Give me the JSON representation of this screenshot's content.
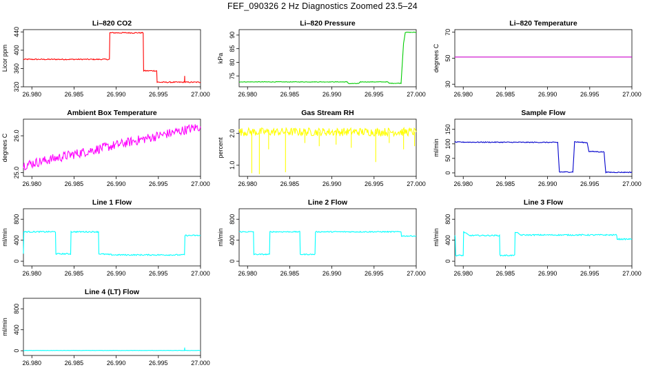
{
  "figure_title": "FEF_090326  2 Hz Diagnostics Zoomed 23.5–24",
  "chart_data": [
    {
      "type": "line",
      "title": "Li–820 CO2",
      "ylabel": "Licor ppm",
      "color": "#ff0000",
      "xlim": [
        26.979,
        27.0
      ],
      "ylim": [
        320,
        445
      ],
      "xticks": [
        26.98,
        26.985,
        26.99,
        26.995,
        27.0
      ],
      "xtick_labels": [
        "26.980",
        "26.985",
        "26.990",
        "26.995",
        "27.000"
      ],
      "yticks": [
        320,
        360,
        400,
        440
      ],
      "ytick_labels": [
        "320",
        "360",
        "400",
        "440"
      ],
      "noise": 1.2,
      "x": [
        26.979,
        26.9892,
        26.98925,
        26.9932,
        26.99325,
        26.9948,
        26.99485,
        26.9981,
        26.99812,
        26.99814,
        26.99816,
        27.0
      ],
      "y": [
        380,
        380,
        438,
        438,
        355,
        355,
        330,
        330,
        345,
        330,
        330,
        330
      ]
    },
    {
      "type": "line",
      "title": "Li–820 Pressure",
      "ylabel": "kPa",
      "color": "#00cc00",
      "xlim": [
        26.979,
        27.0
      ],
      "ylim": [
        71,
        92
      ],
      "xticks": [
        26.98,
        26.985,
        26.99,
        26.995,
        27.0
      ],
      "xtick_labels": [
        "26.980",
        "26.985",
        "26.990",
        "26.995",
        "27.000"
      ],
      "yticks": [
        75,
        80,
        85,
        90
      ],
      "ytick_labels": [
        "75",
        "80",
        "85",
        "90"
      ],
      "noise": 0.1,
      "x": [
        26.979,
        26.9918,
        26.992,
        26.9932,
        26.9934,
        26.9966,
        26.9968,
        26.9982,
        26.9985,
        26.9987,
        27.0
      ],
      "y": [
        72.8,
        72.8,
        72.2,
        72.2,
        72.8,
        72.8,
        72.3,
        72.3,
        87,
        91,
        91
      ]
    },
    {
      "type": "line",
      "title": "Li–820 Temperature",
      "ylabel": "degrees C",
      "color": "#cc00cc",
      "xlim": [
        26.979,
        27.0
      ],
      "ylim": [
        28,
        72
      ],
      "xticks": [
        26.98,
        26.985,
        26.99,
        26.995,
        27.0
      ],
      "xtick_labels": [
        "26.980",
        "26.985",
        "26.990",
        "26.995",
        "27.000"
      ],
      "yticks": [
        30,
        50,
        70
      ],
      "ytick_labels": [
        "30",
        "50",
        "70"
      ],
      "noise": 0,
      "x": [
        26.979,
        27.0
      ],
      "y": [
        50.9,
        50.9
      ]
    },
    {
      "type": "line",
      "title": "Ambient Box Temperature",
      "ylabel": "degrees C",
      "color": "#ff00ff",
      "xlim": [
        26.979,
        27.0
      ],
      "ylim": [
        24.9,
        26.45
      ],
      "xticks": [
        26.98,
        26.985,
        26.99,
        26.995,
        27.0
      ],
      "xtick_labels": [
        "26.980",
        "26.985",
        "26.990",
        "26.995",
        "27.000"
      ],
      "yticks": [
        25.0,
        26.0
      ],
      "ytick_labels": [
        "25.0",
        "26.0"
      ],
      "noise": 0.13,
      "x": [
        26.979,
        26.982,
        26.986,
        26.99,
        26.994,
        26.998,
        27.0
      ],
      "y": [
        25.2,
        25.35,
        25.55,
        25.75,
        25.95,
        26.15,
        26.25
      ]
    },
    {
      "type": "line",
      "title": "Gas Stream RH",
      "ylabel": "percent",
      "color": "#ffff00",
      "xlim": [
        26.979,
        27.0
      ],
      "ylim": [
        0.65,
        2.45
      ],
      "xticks": [
        26.98,
        26.985,
        26.99,
        26.995,
        27.0
      ],
      "xtick_labels": [
        "26.980",
        "26.985",
        "26.990",
        "26.995",
        "27.000"
      ],
      "yticks": [
        1.0,
        2.0
      ],
      "ytick_labels": [
        "1.0",
        "2.0"
      ],
      "noise": 0.13,
      "x": [
        26.979,
        27.0
      ],
      "y": [
        2.05,
        2.05
      ],
      "spikes": [
        {
          "x": 26.9805,
          "y": 0.75
        },
        {
          "x": 26.9814,
          "y": 0.72
        },
        {
          "x": 26.9845,
          "y": 0.78
        },
        {
          "x": 26.9825,
          "y": 1.5
        },
        {
          "x": 26.9868,
          "y": 1.7
        },
        {
          "x": 26.9885,
          "y": 1.6
        },
        {
          "x": 26.9905,
          "y": 1.65
        },
        {
          "x": 26.9923,
          "y": 1.55
        },
        {
          "x": 26.9952,
          "y": 1.1
        },
        {
          "x": 26.9968,
          "y": 1.7
        },
        {
          "x": 26.9985,
          "y": 1.5
        },
        {
          "x": 26.9998,
          "y": 1.6
        }
      ]
    },
    {
      "type": "line",
      "title": "Sample Flow",
      "ylabel": "ml/min",
      "color": "#0000cc",
      "xlim": [
        26.979,
        27.0
      ],
      "ylim": [
        -12,
        185
      ],
      "xticks": [
        26.98,
        26.985,
        26.99,
        26.995,
        27.0
      ],
      "xtick_labels": [
        "26.980",
        "26.985",
        "26.990",
        "26.995",
        "27.000"
      ],
      "yticks": [
        0,
        50,
        100,
        150
      ],
      "ytick_labels": [
        "0",
        "50",
        "100",
        "150"
      ],
      "noise": 1.5,
      "x": [
        26.979,
        26.9912,
        26.9914,
        26.993,
        26.9932,
        26.9947,
        26.9949,
        26.9967,
        26.9969,
        27.0
      ],
      "y": [
        106,
        105,
        3,
        3,
        107,
        104,
        74,
        72,
        2,
        2
      ]
    },
    {
      "type": "line",
      "title": "Line 1 Flow",
      "ylabel": "ml/min",
      "color": "#00ffff",
      "xlim": [
        26.979,
        27.0
      ],
      "ylim": [
        -90,
        1000
      ],
      "xticks": [
        26.98,
        26.985,
        26.99,
        26.995,
        27.0
      ],
      "xtick_labels": [
        "26.980",
        "26.985",
        "26.990",
        "26.995",
        "27.000"
      ],
      "yticks": [
        0,
        400,
        800
      ],
      "ytick_labels": [
        "0",
        "400",
        "800"
      ],
      "noise": 12,
      "x": [
        26.979,
        26.97905,
        26.9795,
        26.9828,
        26.98285,
        26.9846,
        26.98465,
        26.9879,
        26.98795,
        26.9898,
        26.9981,
        26.99815,
        27.0
      ],
      "y": [
        150,
        560,
        560,
        560,
        140,
        140,
        560,
        560,
        140,
        120,
        120,
        490,
        490
      ]
    },
    {
      "type": "line",
      "title": "Line 2 Flow",
      "ylabel": "ml/min",
      "color": "#00ffff",
      "xlim": [
        26.979,
        27.0
      ],
      "ylim": [
        -90,
        1000
      ],
      "xticks": [
        26.98,
        26.985,
        26.99,
        26.995,
        27.0
      ],
      "xtick_labels": [
        "26.980",
        "26.985",
        "26.990",
        "26.995",
        "27.000"
      ],
      "yticks": [
        0,
        400,
        800
      ],
      "ytick_labels": [
        "0",
        "400",
        "800"
      ],
      "noise": 10,
      "x": [
        26.979,
        26.9807,
        26.98075,
        26.9826,
        26.98265,
        26.9862,
        26.98625,
        26.988,
        26.98805,
        26.9982,
        26.99825,
        27.0
      ],
      "y": [
        560,
        560,
        130,
        130,
        560,
        560,
        130,
        130,
        560,
        560,
        480,
        480
      ]
    },
    {
      "type": "line",
      "title": "Line 3 Flow",
      "ylabel": "ml/min",
      "color": "#00ffff",
      "xlim": [
        26.979,
        27.0
      ],
      "ylim": [
        -90,
        1000
      ],
      "xticks": [
        26.98,
        26.985,
        26.99,
        26.995,
        27.0
      ],
      "xtick_labels": [
        "26.980",
        "26.985",
        "26.990",
        "26.995",
        "27.000"
      ],
      "yticks": [
        0,
        400,
        800
      ],
      "ytick_labels": [
        "0",
        "400",
        "800"
      ],
      "noise": 12,
      "x": [
        26.979,
        26.97905,
        26.9791,
        26.98,
        26.98005,
        26.9807,
        26.9843,
        26.98435,
        26.9861,
        26.98615,
        26.9868,
        26.9982,
        26.99825,
        27.0
      ],
      "y": [
        480,
        480,
        110,
        110,
        560,
        490,
        490,
        110,
        110,
        560,
        500,
        500,
        420,
        420
      ]
    },
    {
      "type": "line",
      "title": "Line 4 (LT) Flow",
      "ylabel": "ml/min",
      "color": "#00ffff",
      "xlim": [
        26.979,
        27.0
      ],
      "ylim": [
        -90,
        1000
      ],
      "xticks": [
        26.98,
        26.985,
        26.99,
        26.995,
        27.0
      ],
      "xtick_labels": [
        "26.980",
        "26.985",
        "26.990",
        "26.995",
        "27.000"
      ],
      "yticks": [
        0,
        400,
        800
      ],
      "ytick_labels": [
        "0",
        "400",
        "800"
      ],
      "noise": 2,
      "x": [
        26.979,
        26.9981,
        26.99812,
        26.99814,
        26.99816,
        27.0
      ],
      "y": [
        5,
        5,
        60,
        5,
        5,
        5
      ]
    }
  ]
}
